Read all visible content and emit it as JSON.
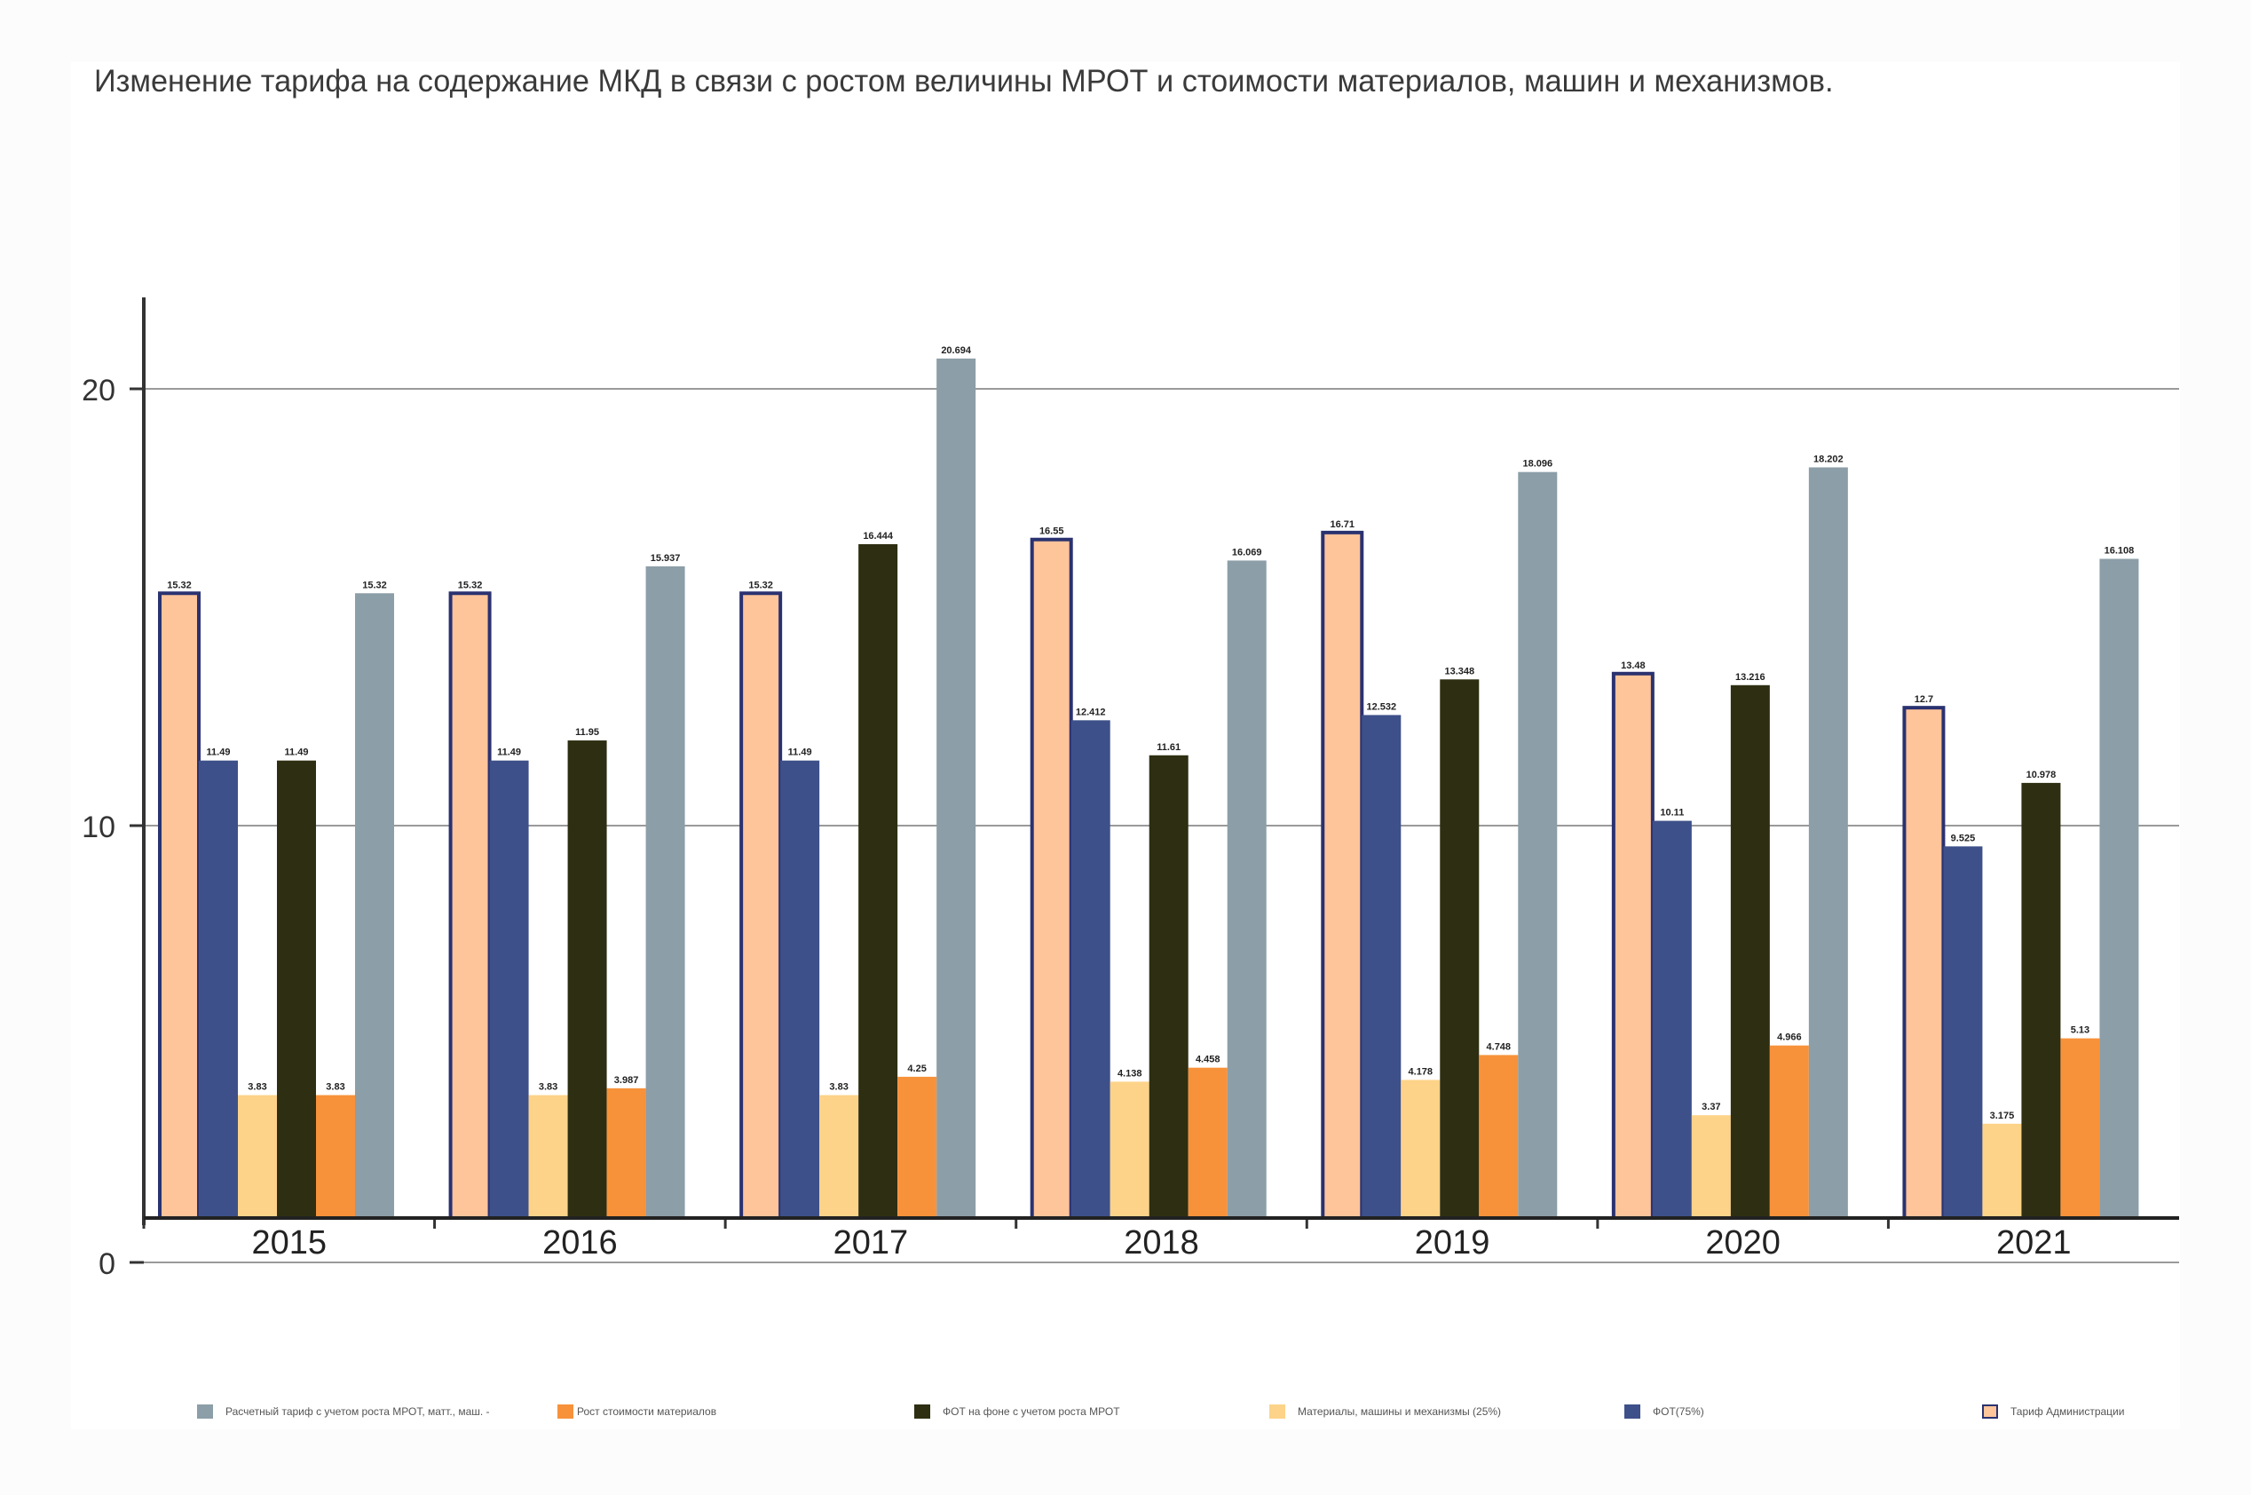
{
  "title": "Изменение тарифа на содержание МКД в связи с ростом величины МРОТ и стоимости материалов, машин и механизмов.",
  "chart_data": {
    "type": "bar",
    "title": "Изменение тарифа на содержание МКД в связи с ростом величины МРОТ и стоимости материалов, машин и механизмов.",
    "xlabel": "",
    "ylabel": "",
    "ylim": [
      0,
      22
    ],
    "yticks": [
      "0",
      "10",
      "20"
    ],
    "ytick_values": [
      0,
      10,
      20
    ],
    "grid": true,
    "legend_position": "bottom",
    "categories": [
      "2015",
      "2016",
      "2017",
      "2018",
      "2019",
      "2020",
      "2021"
    ],
    "series": [
      {
        "name": "Тариф Администрации",
        "color": "#fec49a",
        "border": "#2a3270",
        "values": [
          15.32,
          15.32,
          15.32,
          16.55,
          16.71,
          13.48,
          12.7
        ],
        "labels": [
          "15.32",
          "15.32",
          "15.32",
          "16.55",
          "16.71",
          "13.48",
          "12.7"
        ]
      },
      {
        "name": "ФОТ(75%)",
        "color": "#3d5089",
        "values": [
          11.49,
          11.49,
          11.49,
          12.412,
          12.532,
          10.11,
          9.525
        ],
        "labels": [
          "11.49",
          "11.49",
          "11.49",
          "12.412",
          "12.532",
          "10.11",
          "9.525"
        ]
      },
      {
        "name": "Материалы, машины и механизмы (25%)",
        "color": "#fdd389",
        "values": [
          3.83,
          3.83,
          3.83,
          4.138,
          4.178,
          3.37,
          3.175
        ],
        "labels": [
          "3.83",
          "3.83",
          "3.83",
          "4.138",
          "4.178",
          "3.37",
          "3.175"
        ]
      },
      {
        "name": "ФОТ на фоне с учетом роста МРОТ",
        "color": "#2e2e12",
        "values": [
          11.49,
          11.95,
          16.444,
          11.61,
          13.348,
          13.216,
          10.978
        ],
        "labels": [
          "11.49",
          "11.95",
          "16.444",
          "11.61",
          "13.348",
          "13.216",
          "10.978"
        ]
      },
      {
        "name": "Рост стоимости материалов",
        "color": "#f7923a",
        "values": [
          3.83,
          3.987,
          4.25,
          4.458,
          4.748,
          4.966,
          5.13
        ],
        "labels": [
          "3.83",
          "3.987",
          "4.25",
          "4.458",
          "4.748",
          "4.966",
          "5.13"
        ]
      },
      {
        "name": "Расчетный тариф с учетом роста МРОТ, матт., маш.",
        "color": "#8c9ea8",
        "values": [
          15.32,
          15.937,
          20.694,
          16.069,
          18.096,
          18.202,
          16.108
        ],
        "labels": [
          "15.32",
          "15.937",
          "20.694",
          "16.069",
          "18.096",
          "18.202",
          "16.108"
        ]
      }
    ]
  },
  "legend": [
    {
      "label": "Расчетный тариф с учетом роста МРОТ, матт., маш. -",
      "color": "#8c9ea8"
    },
    {
      "label": "Рост стоимости материалов",
      "color": "#f7923a"
    },
    {
      "label": "ФОТ на фоне с учетом роста МРОТ",
      "color": "#2e2e12"
    },
    {
      "label": "Материалы, машины и механизмы (25%)",
      "color": "#fdd389"
    },
    {
      "label": "ФОТ(75%)",
      "color": "#3d5089"
    },
    {
      "label": "Тариф Администрации",
      "color": "#fec49a"
    }
  ]
}
